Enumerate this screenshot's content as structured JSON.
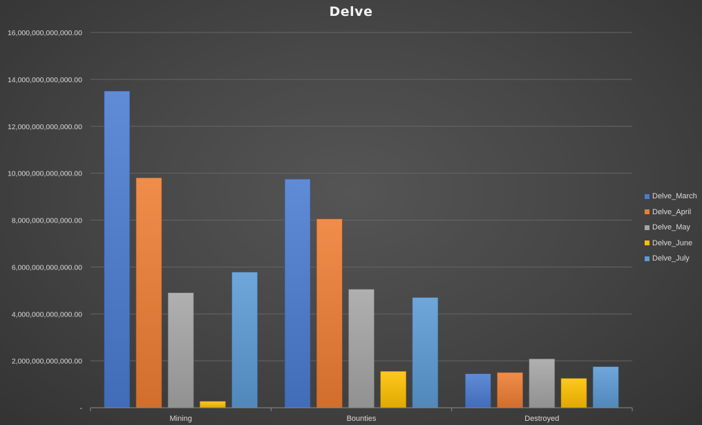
{
  "chart_data": {
    "type": "bar",
    "title": "Delve",
    "categories": [
      "Mining",
      "Bounties",
      "Destroyed"
    ],
    "series": [
      {
        "name": "Delve_March",
        "color": "#4a7bd0",
        "values": [
          13500000000000,
          9750000000000,
          1450000000000
        ]
      },
      {
        "name": "Delve_April",
        "color": "#ee7d33",
        "values": [
          9800000000000,
          8050000000000,
          1500000000000
        ]
      },
      {
        "name": "Delve_May",
        "color": "#a5a5a5",
        "values": [
          4900000000000,
          5050000000000,
          2080000000000
        ]
      },
      {
        "name": "Delve_June",
        "color": "#ffc000",
        "values": [
          270000000000,
          1550000000000,
          1250000000000
        ]
      },
      {
        "name": "Delve_July",
        "color": "#5b9bd5",
        "values": [
          5780000000000,
          4700000000000,
          1750000000000
        ]
      }
    ],
    "y_ticks": [
      "-",
      "2,000,000,000,000.00",
      "4,000,000,000,000.00",
      "6,000,000,000,000.00",
      "8,000,000,000,000.00",
      "10,000,000,000,000.00",
      "12,000,000,000,000.00",
      "14,000,000,000,000.00",
      "16,000,000,000,000.00"
    ],
    "ylim": [
      0,
      16000000000000
    ],
    "xlabel": "",
    "ylabel": "",
    "grid": true,
    "legend_position": "right"
  }
}
